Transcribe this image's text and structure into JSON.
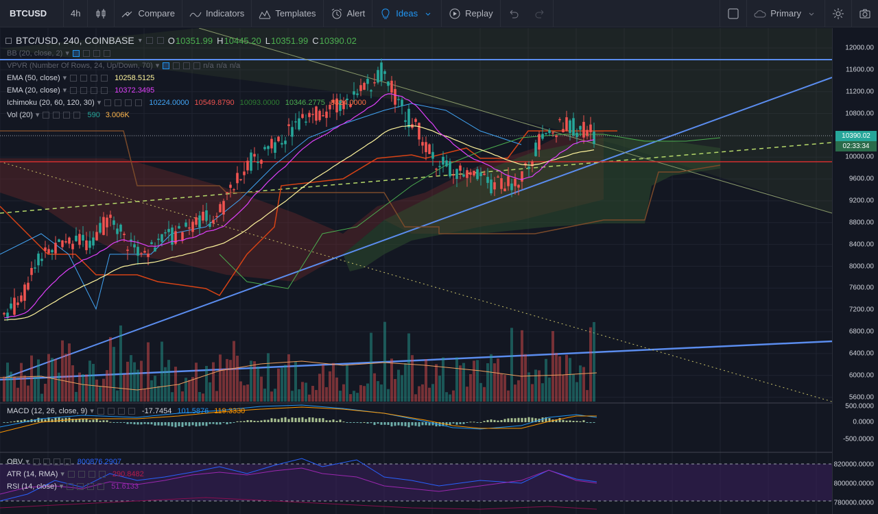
{
  "toolbar": {
    "symbol": "BTCUSD",
    "interval": "4h",
    "compare": "Compare",
    "indicators": "Indicators",
    "templates": "Templates",
    "alert": "Alert",
    "ideas": "Ideas",
    "replay": "Replay",
    "layout_name": "Primary"
  },
  "main": {
    "symbol_title": "BTC/USD, 240, COINBASE",
    "open_label": "O",
    "open": "10351.99",
    "high_label": "H",
    "high": "10445.20",
    "low_label": "L",
    "low": "10351.99",
    "close_label": "C",
    "close": "10390.02"
  },
  "indicators": {
    "bb": {
      "label": "BB (20, close, 2)"
    },
    "vpvr": {
      "label": "VPVR (Number Of Rows, 24, Up/Down, 70)",
      "v1": "n/a",
      "v2": "n/a",
      "v3": "n/a"
    },
    "ema50": {
      "label": "EMA (50, close)",
      "value": "10258.5125",
      "color": "#fff59d"
    },
    "ema20": {
      "label": "EMA (20, close)",
      "value": "10372.3495",
      "color": "#e040fb"
    },
    "ichimoku": {
      "label": "Ichimoku (20, 60, 120, 30)",
      "v1": "10224.0000",
      "v2": "10549.8790",
      "v3": "10093.0000",
      "v4": "10346.2775",
      "v5": "8824.0000"
    },
    "vol": {
      "label": "Vol (20)",
      "v1": "590",
      "v2": "3.006K"
    },
    "macd": {
      "label": "MACD (12, 26, close, 9)",
      "v1": "-17.7454",
      "v2": "101.5876",
      "v3": "119.3330"
    },
    "obv": {
      "label": "OBV",
      "value": "800876.2907"
    },
    "atr": {
      "label": "ATR (14, RMA)",
      "value": "290.8482"
    },
    "rsi": {
      "label": "RSI (14, close)",
      "value": "51.6133"
    }
  },
  "price_axis": {
    "main_ticks": [
      "12000.00",
      "11600.00",
      "11200.00",
      "10800.00",
      "10000.00",
      "9600.00",
      "9200.00",
      "8800.00",
      "8400.00",
      "8000.00",
      "7600.00",
      "7200.00",
      "6800.00",
      "6400.00",
      "6000.00",
      "5600.00"
    ],
    "current_price": "10390.02",
    "countdown": "02:33:34",
    "macd_ticks": [
      "500.0000",
      "0.0000",
      "-500.0000"
    ],
    "lower_ticks": [
      "820000.0000",
      "800000.0000",
      "780000.0000"
    ]
  },
  "colors": {
    "up": "#26a69a",
    "down": "#ef5350",
    "trendline": "#5b8def",
    "accent": "#2196f3",
    "background": "#131722"
  }
}
